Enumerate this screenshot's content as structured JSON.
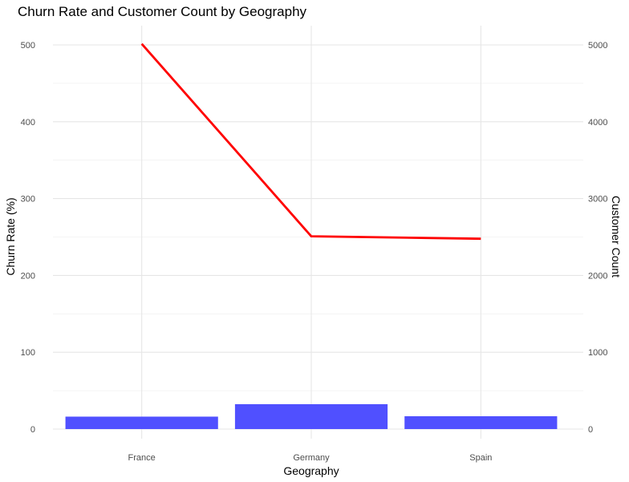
{
  "chart_data": {
    "type": "bar+line",
    "title": "Churn Rate and Customer Count by Geography",
    "xlabel": "Geography",
    "ylabel_left": "Churn Rate (%)",
    "ylabel_right": "Customer Count",
    "categories": [
      "France",
      "Germany",
      "Spain"
    ],
    "left_axis": {
      "range": [
        0,
        500
      ],
      "ticks": [
        "0",
        "100",
        "200",
        "300",
        "400",
        "500"
      ]
    },
    "right_axis": {
      "range": [
        0,
        5000
      ],
      "ticks": [
        "0",
        "1000",
        "2000",
        "3000",
        "4000",
        "5000"
      ]
    },
    "series": [
      {
        "type": "bar",
        "axis": "left",
        "color": "#4d4dff",
        "values": [
          16.2,
          32.4,
          16.7
        ]
      },
      {
        "type": "line",
        "axis": "right",
        "color": "#ff0000",
        "values": [
          5014,
          2509,
          2477
        ]
      }
    ],
    "grid": true,
    "legend": "none"
  }
}
